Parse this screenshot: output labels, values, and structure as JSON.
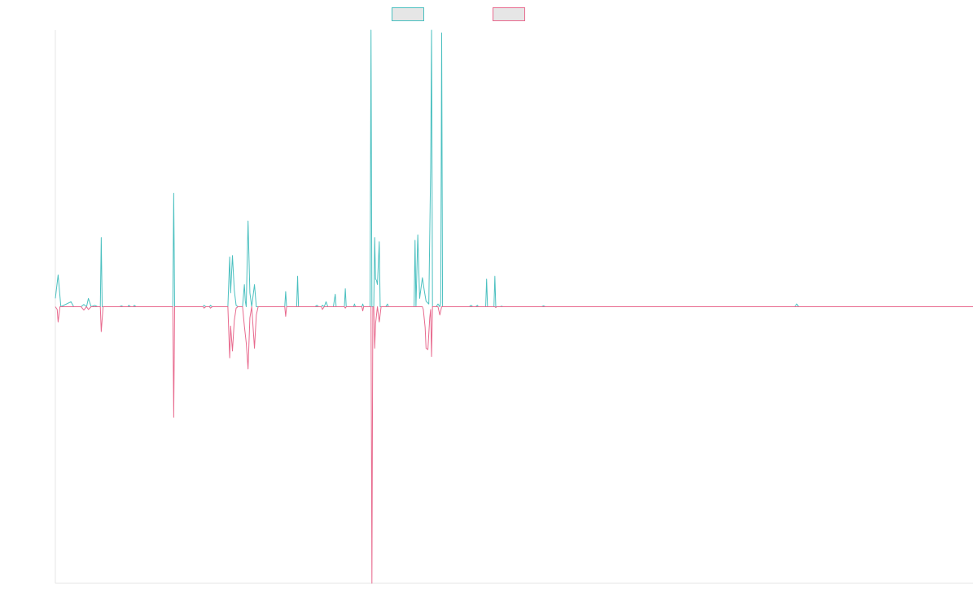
{
  "chart_data": {
    "type": "line",
    "title": "",
    "xlabel": "",
    "ylabel": "",
    "grid": false,
    "legend": "top-center",
    "x_range": [
      0,
      1000
    ],
    "y_range": [
      -1,
      1
    ],
    "series": [
      {
        "color": "#4bc0c0",
        "points": [
          [
            0,
            0.03
          ],
          [
            3,
            0.115
          ],
          [
            6,
            0
          ],
          [
            17,
            0.018
          ],
          [
            20,
            0
          ],
          [
            28,
            0
          ],
          [
            31,
            0.008
          ],
          [
            34,
            0
          ],
          [
            36,
            0.03
          ],
          [
            39,
            0
          ],
          [
            43,
            0.005
          ],
          [
            46,
            0
          ],
          [
            49,
            0
          ],
          [
            50,
            0.25
          ],
          [
            51,
            0
          ],
          [
            70,
            0
          ],
          [
            72,
            0.003
          ],
          [
            74,
            0
          ],
          [
            79,
            0
          ],
          [
            80,
            0.005
          ],
          [
            82,
            0
          ],
          [
            85,
            0
          ],
          [
            86,
            0.005
          ],
          [
            88,
            0
          ],
          [
            128,
            0
          ],
          [
            129,
            0.41
          ],
          [
            130,
            0
          ],
          [
            161,
            0
          ],
          [
            162,
            0.005
          ],
          [
            164,
            0
          ],
          [
            168,
            0
          ],
          [
            169,
            0.005
          ],
          [
            171,
            0
          ],
          [
            188,
            0
          ],
          [
            190,
            0.18
          ],
          [
            191,
            0.05
          ],
          [
            193,
            0.185
          ],
          [
            195,
            0.06
          ],
          [
            197,
            0.005
          ],
          [
            199,
            0
          ],
          [
            204,
            0
          ],
          [
            206,
            0.08
          ],
          [
            207,
            0.02
          ],
          [
            208,
            0
          ],
          [
            210,
            0.31
          ],
          [
            212,
            0.05
          ],
          [
            214,
            0
          ],
          [
            217,
            0.08
          ],
          [
            219,
            0
          ],
          [
            250,
            0
          ],
          [
            251,
            0.055
          ],
          [
            252,
            0
          ],
          [
            263,
            0
          ],
          [
            264,
            0.11
          ],
          [
            265,
            0
          ],
          [
            283,
            0
          ],
          [
            285,
            0.005
          ],
          [
            287,
            0
          ],
          [
            290,
            0
          ],
          [
            291,
            0.005
          ],
          [
            293,
            0
          ],
          [
            295,
            0.018
          ],
          [
            297,
            0
          ],
          [
            303,
            0
          ],
          [
            305,
            0.045
          ],
          [
            306,
            0
          ],
          [
            315,
            0
          ],
          [
            316,
            0.065
          ],
          [
            317,
            0
          ],
          [
            325,
            0
          ],
          [
            326,
            0.01
          ],
          [
            327,
            0
          ],
          [
            334,
            0
          ],
          [
            335,
            0.01
          ],
          [
            336,
            0
          ],
          [
            343,
            0
          ],
          [
            344,
            1.0
          ],
          [
            345,
            0
          ],
          [
            347,
            0
          ],
          [
            348,
            0.25
          ],
          [
            349,
            0.1
          ],
          [
            350,
            0.095
          ],
          [
            351,
            0.08
          ],
          [
            353,
            0.235
          ],
          [
            354,
            0
          ],
          [
            360,
            0
          ],
          [
            362,
            0.01
          ],
          [
            363,
            0
          ],
          [
            391,
            0
          ],
          [
            392,
            0.24
          ],
          [
            393,
            0
          ],
          [
            395,
            0.26
          ],
          [
            397,
            0.03
          ],
          [
            400,
            0.105
          ],
          [
            402,
            0.06
          ],
          [
            404,
            0.02
          ],
          [
            407,
            0.01
          ],
          [
            409,
            0.5
          ],
          [
            410,
            1.0
          ],
          [
            411,
            0
          ],
          [
            415,
            0
          ],
          [
            417,
            0.01
          ],
          [
            419,
            0
          ],
          [
            420,
            0.015
          ],
          [
            421,
            0.99
          ],
          [
            422,
            0
          ],
          [
            451,
            0
          ],
          [
            453,
            0.005
          ],
          [
            455,
            0
          ],
          [
            458,
            0
          ],
          [
            460,
            0.005
          ],
          [
            461,
            0
          ],
          [
            469,
            0
          ],
          [
            470,
            0.1
          ],
          [
            471,
            0
          ],
          [
            478,
            0
          ],
          [
            479,
            0.11
          ],
          [
            480,
            0
          ],
          [
            485,
            0
          ],
          [
            486,
            0.002
          ],
          [
            488,
            0
          ],
          [
            530,
            0
          ],
          [
            532,
            0.003
          ],
          [
            534,
            0
          ],
          [
            806,
            0
          ],
          [
            808,
            0.01
          ],
          [
            810,
            0
          ],
          [
            1000,
            0
          ]
        ]
      },
      {
        "color": "#e86a8e",
        "points": [
          [
            0,
            0
          ],
          [
            2,
            -0.01
          ],
          [
            3,
            -0.055
          ],
          [
            5,
            0
          ],
          [
            28,
            0
          ],
          [
            31,
            -0.012
          ],
          [
            34,
            0
          ],
          [
            36,
            -0.01
          ],
          [
            39,
            0
          ],
          [
            49,
            0
          ],
          [
            50,
            -0.09
          ],
          [
            52,
            0
          ],
          [
            128,
            0
          ],
          [
            129,
            -0.4
          ],
          [
            130,
            0
          ],
          [
            161,
            0
          ],
          [
            162,
            -0.005
          ],
          [
            164,
            0
          ],
          [
            168,
            0
          ],
          [
            169,
            -0.005
          ],
          [
            171,
            0
          ],
          [
            188,
            0
          ],
          [
            190,
            -0.185
          ],
          [
            191,
            -0.07
          ],
          [
            193,
            -0.16
          ],
          [
            195,
            -0.05
          ],
          [
            197,
            -0.005
          ],
          [
            199,
            0
          ],
          [
            204,
            0
          ],
          [
            206,
            -0.07
          ],
          [
            208,
            -0.13
          ],
          [
            210,
            -0.225
          ],
          [
            212,
            -0.04
          ],
          [
            214,
            0
          ],
          [
            217,
            -0.15
          ],
          [
            219,
            -0.03
          ],
          [
            221,
            0
          ],
          [
            250,
            0
          ],
          [
            251,
            -0.035
          ],
          [
            252,
            0
          ],
          [
            290,
            0
          ],
          [
            291,
            -0.01
          ],
          [
            293,
            0
          ],
          [
            315,
            0
          ],
          [
            316,
            -0.005
          ],
          [
            317,
            0
          ],
          [
            334,
            0
          ],
          [
            335,
            -0.015
          ],
          [
            336,
            0
          ],
          [
            344,
            0
          ],
          [
            345,
            -1.0
          ],
          [
            346,
            0
          ],
          [
            347,
            0
          ],
          [
            348,
            -0.15
          ],
          [
            349,
            -0.06
          ],
          [
            351,
            0
          ],
          [
            353,
            -0.055
          ],
          [
            355,
            0
          ],
          [
            400,
            0
          ],
          [
            401,
            -0.01
          ],
          [
            403,
            -0.075
          ],
          [
            404,
            -0.15
          ],
          [
            406,
            -0.155
          ],
          [
            408,
            -0.04
          ],
          [
            409,
            -0.01
          ],
          [
            410,
            -0.18
          ],
          [
            411,
            0
          ],
          [
            417,
            0
          ],
          [
            419,
            -0.03
          ],
          [
            421,
            0
          ],
          [
            479,
            0
          ],
          [
            480,
            -0.003
          ],
          [
            481,
            0
          ],
          [
            1000,
            0
          ]
        ]
      }
    ]
  }
}
